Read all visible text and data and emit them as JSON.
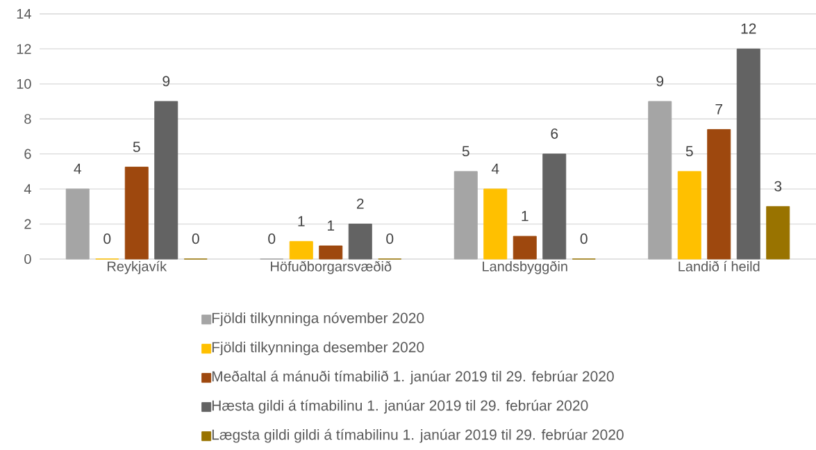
{
  "chart_data": {
    "type": "bar",
    "categories": [
      "Reykjavík",
      "Höfuðborgarsvæðið",
      "Landsbyggðin",
      "Landið í heild"
    ],
    "series": [
      {
        "name": "Fjöldi tilkynninga nóvember 2020",
        "color": "#a5a5a5",
        "values": [
          4,
          0,
          5,
          9
        ],
        "value_labels": [
          "4",
          "0",
          "5",
          "9"
        ]
      },
      {
        "name": "Fjöldi tilkynninga desember 2020",
        "color": "#ffc000",
        "values": [
          0,
          1,
          4,
          5
        ],
        "value_labels": [
          "0",
          "1",
          "4",
          "5"
        ]
      },
      {
        "name": "Meðaltal á mánuði tímabilið 1. janúar 2019 til 29. febrúar 2020",
        "color": "#9e480e",
        "values": [
          5.25,
          0.75,
          1.3,
          7.4
        ],
        "value_labels": [
          "5",
          "1",
          "1",
          "7"
        ]
      },
      {
        "name": "Hæsta gildi á tímabilinu 1. janúar 2019 til 29. febrúar 2020",
        "color": "#636363",
        "values": [
          9,
          2,
          6,
          12
        ],
        "value_labels": [
          "9",
          "2",
          "6",
          "12"
        ]
      },
      {
        "name": "Lægsta gildi gildi á tímabilinu 1. janúar 2019 til 29. febrúar 2020",
        "color": "#997300",
        "values": [
          0,
          0,
          0,
          3
        ],
        "value_labels": [
          "0",
          "0",
          "0",
          "3"
        ]
      }
    ],
    "ylim": [
      0,
      14
    ],
    "yticks": [
      0,
      2,
      4,
      6,
      8,
      10,
      12,
      14
    ],
    "grid": "y",
    "legend": "bottom"
  }
}
